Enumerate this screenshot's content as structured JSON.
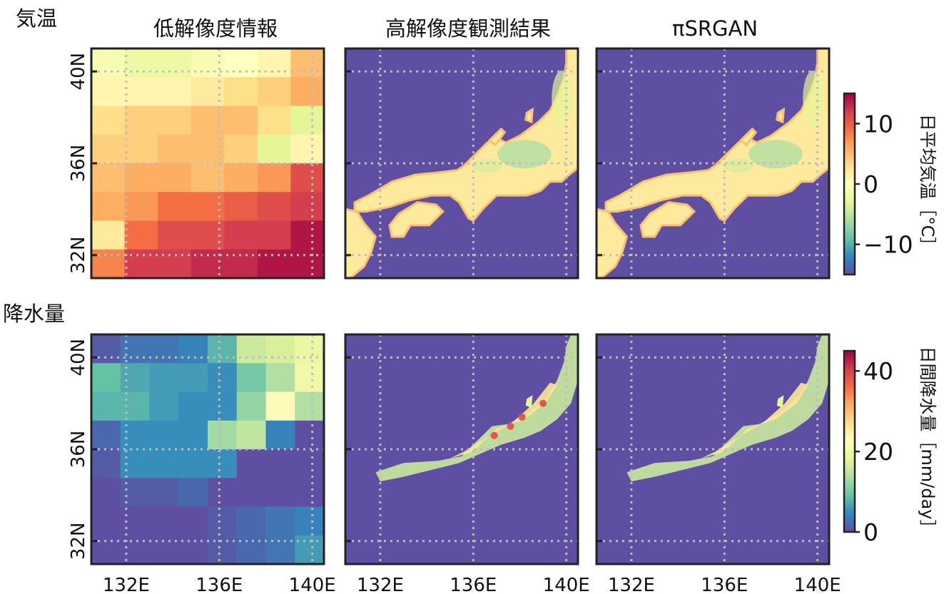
{
  "rows": [
    {
      "label": "気温"
    },
    {
      "label": "降水量"
    }
  ],
  "columns": [
    {
      "title": "低解像度情報"
    },
    {
      "title": "高解像度観測結果"
    },
    {
      "title": "πSRGAN"
    }
  ],
  "colors": {
    "ocean": "#5e4fa2",
    "cmap": [
      "#5e4fa2",
      "#3288bd",
      "#66c2a5",
      "#abdda4",
      "#e6f598",
      "#ffffbf",
      "#fee08b",
      "#fdae61",
      "#f46d43",
      "#d53e4f",
      "#9e0142"
    ]
  },
  "chart_data": [
    {
      "type": "heatmap",
      "title": "気温",
      "panels": [
        "低解像度情報",
        "高解像度観測結果",
        "πSRGAN"
      ],
      "x_ticks": [
        "132E",
        "136E",
        "140E"
      ],
      "y_ticks": [
        "40N",
        "36N",
        "32N"
      ],
      "lon_range": [
        130.5,
        140.5
      ],
      "lat_range": [
        31,
        41
      ],
      "grid": true,
      "colorbar": {
        "label": "日平均気温［°C］",
        "ticks": [
          "10",
          "0",
          "−10"
        ],
        "tick_values": [
          10,
          0,
          -10
        ],
        "range": [
          -15,
          15
        ]
      },
      "low_res_values": [
        [
          -1,
          -2,
          -2,
          -1,
          0,
          1,
          5
        ],
        [
          1,
          1,
          1,
          2,
          3,
          4,
          6
        ],
        [
          3,
          4,
          4,
          5,
          5,
          3,
          -3
        ],
        [
          4,
          4,
          5,
          5,
          4,
          -3,
          1
        ],
        [
          5,
          6,
          6,
          5,
          6,
          7,
          11
        ],
        [
          6,
          7,
          9,
          9,
          10,
          11,
          12
        ],
        [
          2,
          9,
          11,
          11,
          12,
          12,
          14
        ],
        [
          8,
          12,
          12,
          13,
          13,
          14,
          14
        ]
      ]
    },
    {
      "type": "heatmap",
      "title": "降水量",
      "panels": [
        "低解像度情報",
        "高解像度観測結果",
        "πSRGAN"
      ],
      "x_ticks": [
        "132E",
        "136E",
        "140E"
      ],
      "y_ticks": [
        "40N",
        "36N",
        "32N"
      ],
      "lon_range": [
        130.5,
        140.5
      ],
      "lat_range": [
        31,
        41
      ],
      "grid": true,
      "colorbar": {
        "label": "日間降水量［mm/day］",
        "ticks": [
          "40",
          "20",
          "0"
        ],
        "tick_values": [
          40,
          20,
          0
        ],
        "range": [
          0,
          45
        ]
      },
      "low_res_values": [
        [
          1,
          3,
          3,
          4,
          8,
          16,
          17,
          19
        ],
        [
          9,
          7,
          6,
          6,
          5,
          10,
          14,
          20
        ],
        [
          8,
          8,
          6,
          5,
          5,
          12,
          23,
          14
        ],
        [
          2,
          5,
          5,
          5,
          13,
          15,
          4,
          0
        ],
        [
          1,
          5,
          5,
          5,
          5,
          0,
          0,
          0
        ],
        [
          0,
          1,
          1,
          2,
          0,
          0,
          0,
          0
        ],
        [
          0,
          0,
          0,
          0,
          1,
          2,
          3,
          4
        ],
        [
          0,
          0,
          0,
          0,
          1,
          2,
          3,
          6
        ]
      ]
    }
  ]
}
